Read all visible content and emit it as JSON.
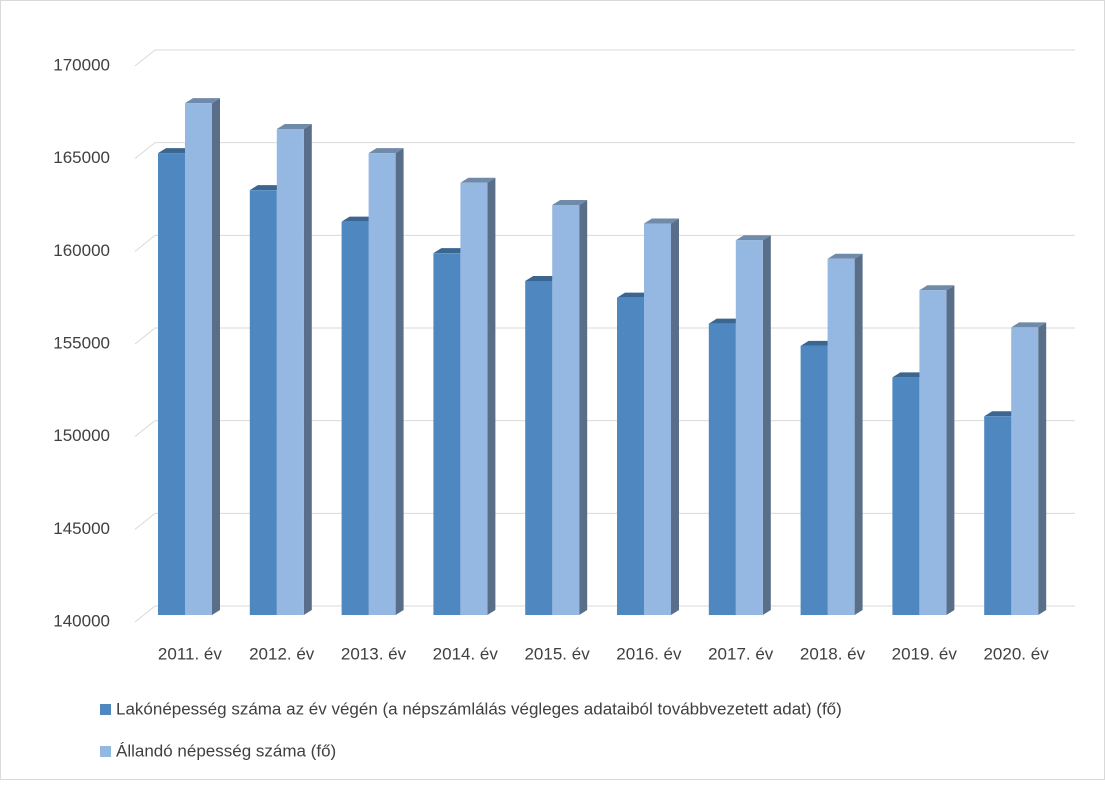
{
  "chart_data": {
    "type": "bar3d",
    "categories": [
      "2011. év",
      "2012. év",
      "2013. év",
      "2014. év",
      "2015. év",
      "2016. év",
      "2017. év",
      "2018. év",
      "2019. év",
      "2020. év"
    ],
    "series": [
      {
        "name": "Lakónépesség száma az év végén (a népszámlálás végleges adataiból továbbvezetett adat) (fő)",
        "color": "#4f88c0",
        "values": [
          165300,
          163300,
          161600,
          159900,
          158400,
          157500,
          156100,
          154900,
          153200,
          151100
        ]
      },
      {
        "name": "Állandó népesség száma (fő)",
        "color": "#95b8e3",
        "values": [
          168000,
          166600,
          165300,
          163700,
          162500,
          161500,
          160600,
          159600,
          157900,
          155900
        ]
      }
    ],
    "ylim": [
      140000,
      170000
    ],
    "yticks": [
      140000,
      145000,
      150000,
      155000,
      160000,
      165000,
      170000
    ],
    "grid": true,
    "legend": "bottom"
  }
}
